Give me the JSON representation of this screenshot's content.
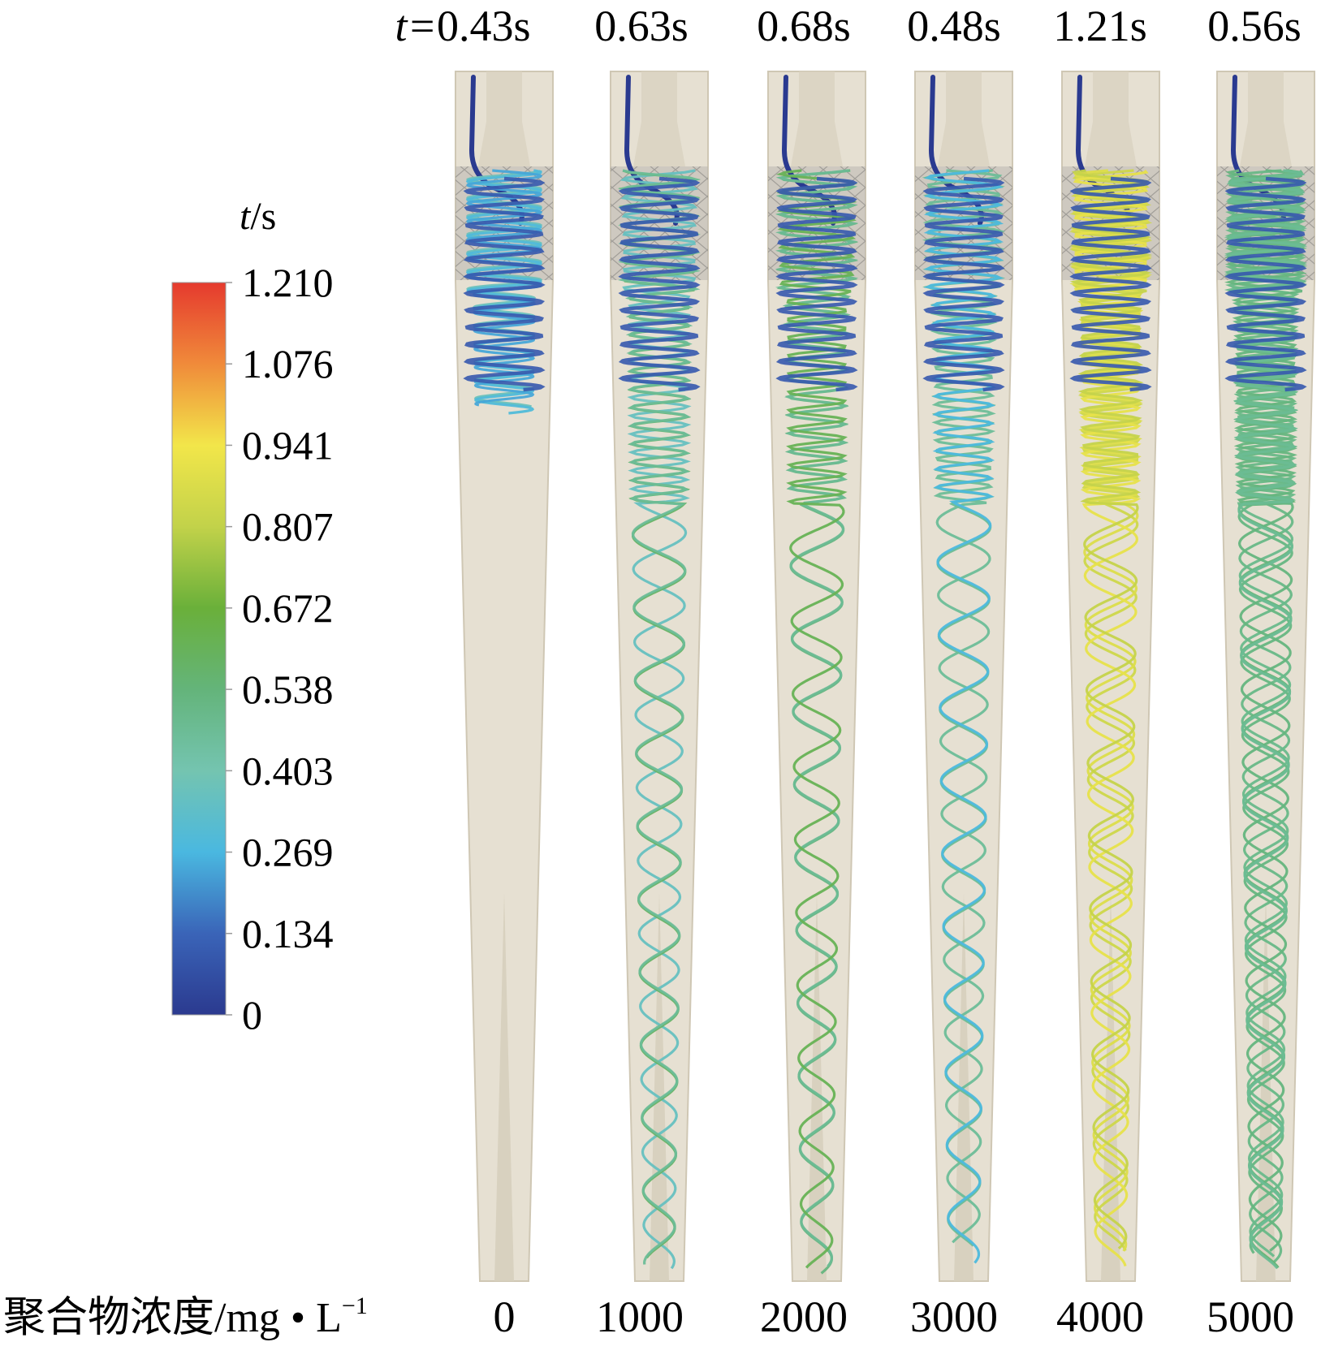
{
  "figure": {
    "colorbar": {
      "title_var": "t",
      "title_unit": "/s",
      "ticks": [
        "1.210",
        "1.076",
        "0.941",
        "0.807",
        "0.672",
        "0.538",
        "0.403",
        "0.269",
        "0.134",
        "0"
      ],
      "min": 0,
      "max": 1.21,
      "gradient_stops": [
        {
          "value": 0.0,
          "color": "#2b3a8f"
        },
        {
          "value": 0.134,
          "color": "#3a64b8"
        },
        {
          "value": 0.269,
          "color": "#4ab8e0"
        },
        {
          "value": 0.403,
          "color": "#74c4b0"
        },
        {
          "value": 0.538,
          "color": "#64b47a"
        },
        {
          "value": 0.672,
          "color": "#6ab03a"
        },
        {
          "value": 0.807,
          "color": "#c2d24a"
        },
        {
          "value": 0.941,
          "color": "#f2e64a"
        },
        {
          "value": 1.076,
          "color": "#f08a3a"
        },
        {
          "value": 1.21,
          "color": "#e53a2e"
        }
      ]
    },
    "x_axis_label": "聚合物浓度/mg • L",
    "x_axis_label_sup": "−1",
    "panels": [
      {
        "time_prefix": "t=",
        "time": "0.43s",
        "concentration": "0",
        "residence": 0.43
      },
      {
        "time_prefix": "",
        "time": "0.63s",
        "concentration": "1000",
        "residence": 0.63
      },
      {
        "time_prefix": "",
        "time": "0.68s",
        "concentration": "2000",
        "residence": 0.68
      },
      {
        "time_prefix": "",
        "time": "0.48s",
        "concentration": "3000",
        "residence": 0.48
      },
      {
        "time_prefix": "",
        "time": "1.21s",
        "concentration": "4000",
        "residence": 1.21
      },
      {
        "time_prefix": "",
        "time": "0.56s",
        "concentration": "5000",
        "residence": 0.56
      }
    ],
    "colors": {
      "body": "#e6e0d2",
      "body_edge": "#cfc7b4",
      "mesh": "#b9b6b0",
      "dark_track": "#2a3a90"
    }
  }
}
